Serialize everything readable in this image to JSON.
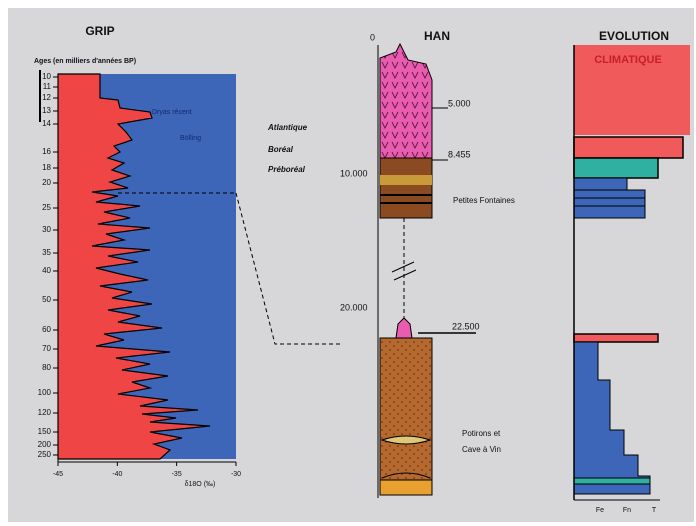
{
  "grip": {
    "title": "GRIP",
    "y_axis_label": "Ages (en milliers d'années BP)",
    "yticks": [
      "10",
      "11",
      "12",
      "13",
      "14",
      "16",
      "18",
      "20",
      "25",
      "30",
      "35",
      "40",
      "50",
      "60",
      "70",
      "80",
      "100",
      "120",
      "150",
      "200",
      "250"
    ],
    "xticks": [
      "-45",
      "-40",
      "-35",
      "-30"
    ],
    "x_axis_label": "δ18O (‰)",
    "annotations": [
      "Dryas récent",
      "Bölling"
    ]
  },
  "periods": [
    "Atlantique",
    "Boréal",
    "Préboréal"
  ],
  "han": {
    "title": "HAN",
    "depth_labels": [
      "0",
      "10.000",
      "20.000"
    ],
    "dates": [
      "5.000",
      "8.455",
      "22.500"
    ],
    "sites": [
      "Petites Fontaines",
      "Potirons et",
      "Cave à Vin"
    ]
  },
  "evolution": {
    "title": "EVOLUTION",
    "subtitle": "CLIMATIQUE",
    "scale_labels": [
      "Fe",
      "Fn",
      "T"
    ]
  }
}
